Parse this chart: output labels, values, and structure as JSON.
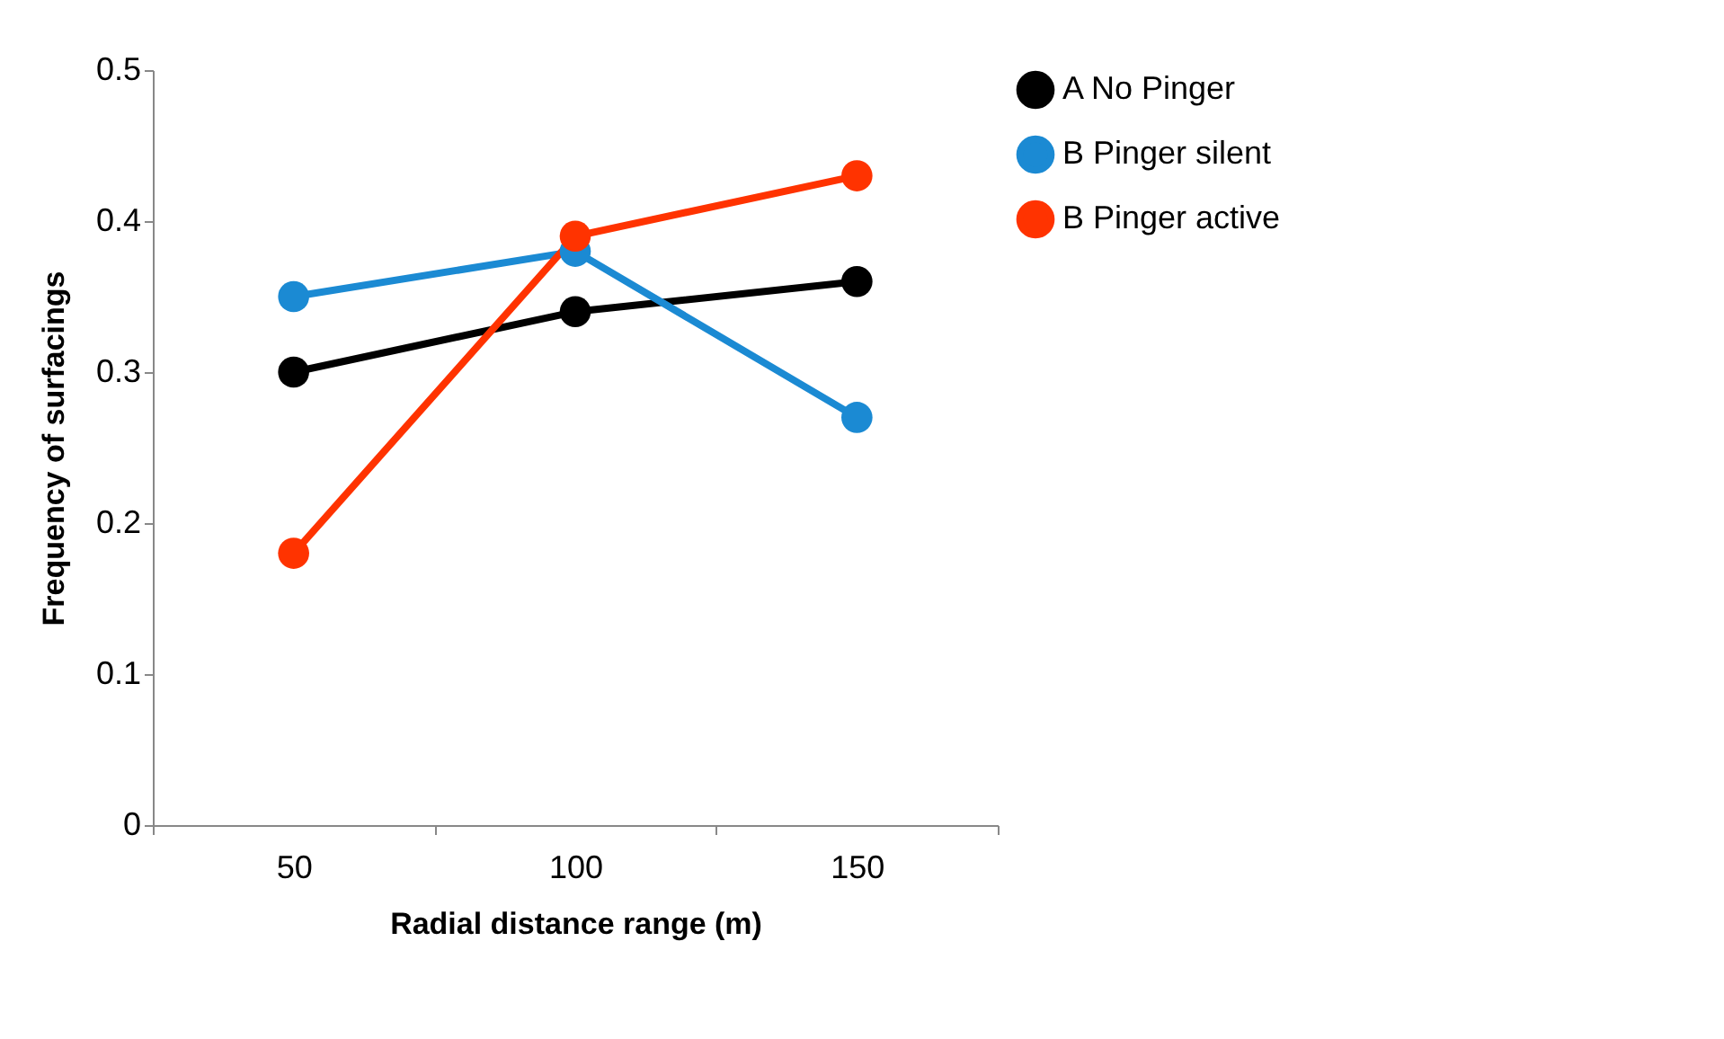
{
  "chart_data": {
    "type": "line",
    "xlabel": "Radial distance range (m)",
    "ylabel": "Frequency of surfacings",
    "categories": [
      "50",
      "100",
      "150"
    ],
    "series": [
      {
        "name": "A  No Pinger",
        "color": "#000000",
        "values": [
          0.3,
          0.34,
          0.36
        ]
      },
      {
        "name": "B  Pinger silent",
        "color": "#1b8ad3",
        "values": [
          0.35,
          0.38,
          0.27
        ]
      },
      {
        "name": "B  Pinger active",
        "color": "#ff3300",
        "values": [
          0.18,
          0.39,
          0.43
        ]
      }
    ],
    "ylim": [
      0,
      0.5
    ],
    "yticks": [
      0,
      0.1,
      0.2,
      0.3,
      0.4,
      0.5
    ],
    "grid": false,
    "legend": "right",
    "marker": "circle",
    "line_style": "solid"
  }
}
